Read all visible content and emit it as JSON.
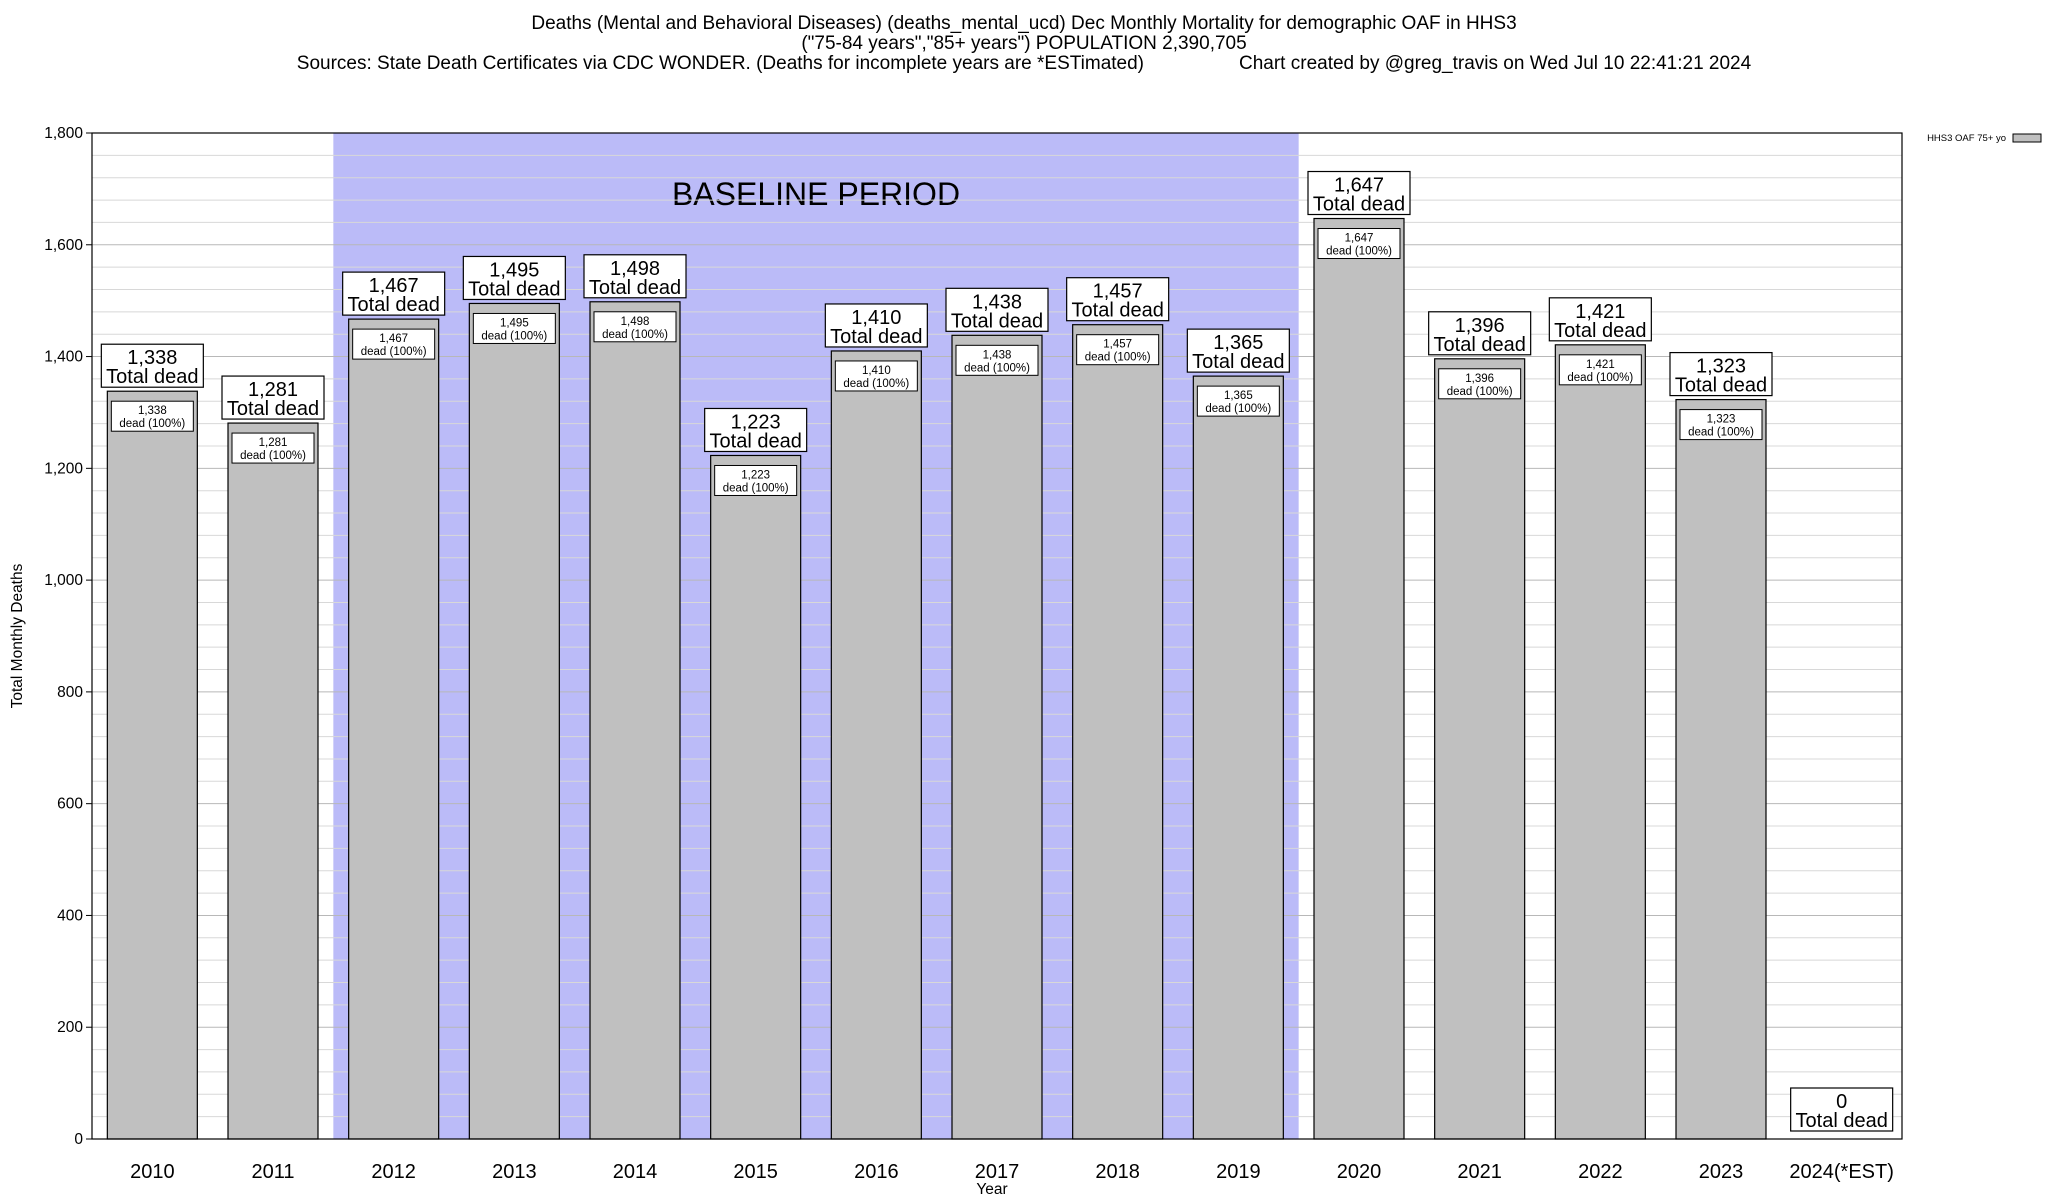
{
  "header": {
    "title_line1": "Deaths (Mental and Behavioral Diseases) (deaths_mental_ucd) Dec Monthly Mortality for demographic OAF in HHS3",
    "title_line2": "(\"75-84 years\",\"85+ years\") POPULATION 2,390,705",
    "sources": "Sources: State Death Certificates via CDC WONDER. (Deaths for incomplete years are *ESTimated)",
    "credit": "Chart created by @greg_travis on Wed Jul 10 22:41:21 2024"
  },
  "chart_data": {
    "type": "bar",
    "xlabel": "Year",
    "ylabel": "Total Monthly Deaths",
    "ylim": [
      0,
      1800
    ],
    "yticks": [
      0,
      200,
      400,
      600,
      800,
      1000,
      1200,
      1400,
      1600,
      1800
    ],
    "ytick_labels": [
      "0",
      "200",
      "400",
      "600",
      "800",
      "1,000",
      "1,200",
      "1,400",
      "1,600",
      "1,800"
    ],
    "minor_grid_step": 40,
    "grid": true,
    "categories": [
      "2010",
      "2011",
      "2012",
      "2013",
      "2014",
      "2015",
      "2016",
      "2017",
      "2018",
      "2019",
      "2020",
      "2021",
      "2022",
      "2023",
      "2024(*EST)"
    ],
    "series": [
      {
        "name": "HHS3 OAF 75+ yo",
        "values": [
          1338,
          1281,
          1467,
          1495,
          1498,
          1223,
          1410,
          1438,
          1457,
          1365,
          1647,
          1396,
          1421,
          1323,
          0
        ],
        "color": "#c0c0c0"
      }
    ],
    "value_labels": [
      "1,338",
      "1,281",
      "1,467",
      "1,495",
      "1,498",
      "1,223",
      "1,410",
      "1,438",
      "1,457",
      "1,365",
      "1,647",
      "1,396",
      "1,421",
      "1,323",
      "0"
    ],
    "total_label_text": "Total dead",
    "inner_label_text": "dead (100%)",
    "baseline": {
      "label": "BASELINE PERIOD",
      "start": "2012",
      "end": "2019",
      "color": "#bbbbf8"
    },
    "legend": {
      "position": "top-right",
      "label": "HHS3 OAF 75+ yo"
    }
  }
}
